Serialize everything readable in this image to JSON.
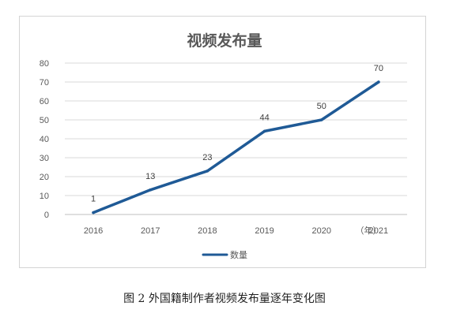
{
  "chart_data": {
    "type": "line",
    "title": "视频发布量",
    "categories": [
      "2016",
      "2017",
      "2018",
      "2019",
      "2020",
      "2021"
    ],
    "series": [
      {
        "name": "数量",
        "values": [
          1,
          13,
          23,
          44,
          50,
          70
        ],
        "color": "#1f5a96"
      }
    ],
    "data_labels": [
      "1",
      "13",
      "23",
      "44",
      "50",
      "70"
    ],
    "y_ticks": [
      "0",
      "10",
      "20",
      "30",
      "40",
      "50",
      "60",
      "70",
      "80"
    ],
    "ylim": [
      0,
      80
    ],
    "x_unit": "（年）",
    "grid": true,
    "legend_position": "bottom",
    "gridline_color": "#d9d9d9",
    "axis_color": "#bfbfbf"
  },
  "caption": "图 2   外国籍制作者视频发布量逐年变化图"
}
